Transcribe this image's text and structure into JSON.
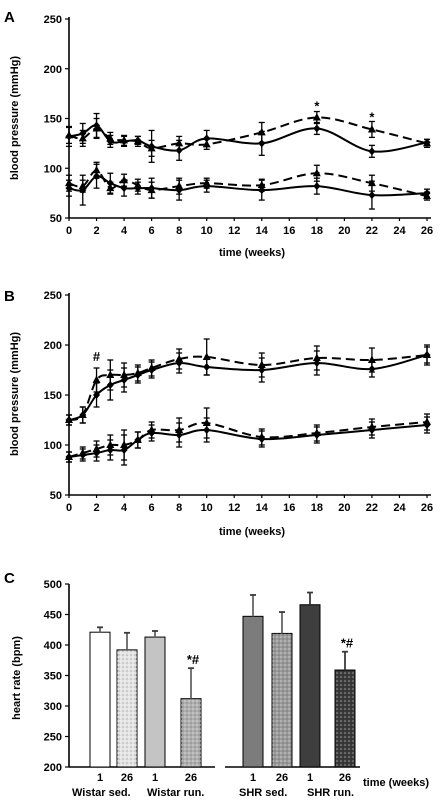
{
  "chart_data": [
    {
      "panel": "A",
      "type": "line",
      "xlabel": "time (weeks)",
      "ylabel": "blood pressure (mmHg)",
      "xlim": [
        0,
        26
      ],
      "ylim": [
        50,
        250
      ],
      "xticks": [
        "0",
        "2",
        "4",
        "6",
        "8",
        "10",
        "12",
        "14",
        "16",
        "18",
        "20",
        "22",
        "24",
        "26"
      ],
      "yticks": [
        "50",
        "100",
        "150",
        "200",
        "250"
      ],
      "series": [
        {
          "style": "dashed",
          "marker": "triangle",
          "x": [
            0,
            1,
            2,
            3,
            4,
            5,
            6,
            8,
            10,
            14,
            18,
            22,
            26
          ],
          "y": [
            133,
            130,
            140,
            130,
            128,
            127,
            120,
            125,
            124,
            136,
            151,
            139,
            125
          ],
          "err": [
            8,
            8,
            10,
            6,
            5,
            5,
            8,
            7,
            5,
            10,
            6,
            8,
            4
          ]
        },
        {
          "style": "solid",
          "marker": "diamond",
          "x": [
            0,
            1,
            2,
            3,
            4,
            5,
            6,
            8,
            10,
            14,
            18,
            22,
            26
          ],
          "y": [
            132,
            135,
            143,
            127,
            127,
            128,
            122,
            118,
            130,
            125,
            140,
            117,
            126
          ],
          "err": [
            10,
            10,
            12,
            6,
            5,
            4,
            16,
            10,
            8,
            12,
            6,
            6,
            3
          ]
        },
        {
          "style": "dashed",
          "marker": "triangle",
          "x": [
            0,
            1,
            2,
            3,
            4,
            5,
            6,
            8,
            10,
            14,
            18,
            22,
            26
          ],
          "y": [
            85,
            82,
            98,
            80,
            88,
            83,
            78,
            82,
            85,
            83,
            95,
            85,
            72
          ],
          "err": [
            8,
            6,
            8,
            6,
            6,
            6,
            8,
            8,
            5,
            6,
            8,
            8,
            4
          ]
        },
        {
          "style": "solid",
          "marker": "diamond",
          "x": [
            0,
            1,
            2,
            3,
            4,
            5,
            6,
            8,
            10,
            14,
            18,
            22,
            26
          ],
          "y": [
            80,
            78,
            92,
            85,
            80,
            80,
            80,
            78,
            82,
            78,
            82,
            73,
            75
          ],
          "err": [
            8,
            15,
            12,
            10,
            8,
            6,
            10,
            10,
            6,
            10,
            8,
            14,
            4
          ]
        }
      ],
      "annotations": [
        {
          "text": "*",
          "x": 18,
          "y": 158
        },
        {
          "text": "*",
          "x": 22,
          "y": 147
        }
      ]
    },
    {
      "panel": "B",
      "type": "line",
      "xlabel": "time (weeks)",
      "ylabel": "blood pressure (mmHg)",
      "xlim": [
        0,
        26
      ],
      "ylim": [
        50,
        250
      ],
      "xticks": [
        "0",
        "2",
        "4",
        "6",
        "8",
        "10",
        "12",
        "14",
        "16",
        "18",
        "20",
        "22",
        "24",
        "26"
      ],
      "yticks": [
        "50",
        "100",
        "150",
        "200",
        "250"
      ],
      "series": [
        {
          "style": "dashed",
          "marker": "triangle",
          "x": [
            0,
            1,
            2,
            3,
            4,
            5,
            6,
            8,
            10,
            14,
            18,
            22,
            26
          ],
          "y": [
            125,
            130,
            165,
            170,
            170,
            172,
            177,
            186,
            188,
            180,
            187,
            185,
            190
          ],
          "err": [
            5,
            8,
            12,
            15,
            12,
            8,
            8,
            10,
            18,
            12,
            12,
            12,
            10
          ]
        },
        {
          "style": "solid",
          "marker": "diamond",
          "x": [
            0,
            1,
            2,
            3,
            4,
            5,
            6,
            8,
            10,
            14,
            18,
            22,
            26
          ],
          "y": [
            125,
            130,
            150,
            160,
            165,
            170,
            175,
            182,
            178,
            175,
            182,
            176,
            190
          ],
          "err": [
            5,
            8,
            12,
            15,
            12,
            8,
            8,
            10,
            8,
            12,
            12,
            8,
            8
          ]
        },
        {
          "style": "dashed",
          "marker": "triangle",
          "x": [
            0,
            1,
            2,
            3,
            4,
            5,
            6,
            8,
            10,
            14,
            18,
            22,
            26
          ],
          "y": [
            88,
            92,
            96,
            100,
            100,
            105,
            115,
            115,
            122,
            108,
            112,
            118,
            123
          ],
          "err": [
            5,
            6,
            8,
            10,
            15,
            8,
            8,
            12,
            15,
            8,
            8,
            8,
            8
          ]
        },
        {
          "style": "solid",
          "marker": "diamond",
          "x": [
            0,
            1,
            2,
            3,
            4,
            5,
            6,
            8,
            10,
            14,
            18,
            22,
            26
          ],
          "y": [
            88,
            90,
            92,
            95,
            95,
            105,
            112,
            110,
            115,
            106,
            110,
            115,
            120
          ],
          "err": [
            5,
            6,
            8,
            10,
            15,
            8,
            8,
            12,
            12,
            8,
            8,
            8,
            8
          ]
        }
      ],
      "annotations": [
        {
          "text": "#",
          "x": 2,
          "y": 184
        }
      ]
    },
    {
      "panel": "C",
      "type": "bar",
      "ylabel": "heart rate (bpm)",
      "xlabel": "time (weeks)",
      "ylim": [
        200,
        500
      ],
      "yticks": [
        "200",
        "250",
        "300",
        "350",
        "400",
        "450",
        "500"
      ],
      "categories": [
        "1",
        "26",
        "1",
        "26",
        "1",
        "26",
        "1",
        "26"
      ],
      "groups": [
        "Wistar sed.",
        "Wistar run.",
        "SHR sed.",
        "SHR run."
      ],
      "values": [
        421,
        392,
        413,
        312,
        447,
        419,
        466,
        359
      ],
      "err": [
        8,
        28,
        10,
        50,
        35,
        35,
        20,
        30
      ],
      "colors": [
        "#ffffff",
        "#e4e4e4",
        "#c4c4c4",
        "#b0b0b0",
        "#7c7c7c",
        "#9a9a9a",
        "#3e3e3e",
        "#3a3a3a"
      ],
      "patterns": [
        false,
        true,
        false,
        true,
        false,
        true,
        false,
        true
      ],
      "annotations": [
        {
          "bar": 3,
          "text": "*#"
        },
        {
          "bar": 7,
          "text": "*#"
        }
      ]
    }
  ]
}
